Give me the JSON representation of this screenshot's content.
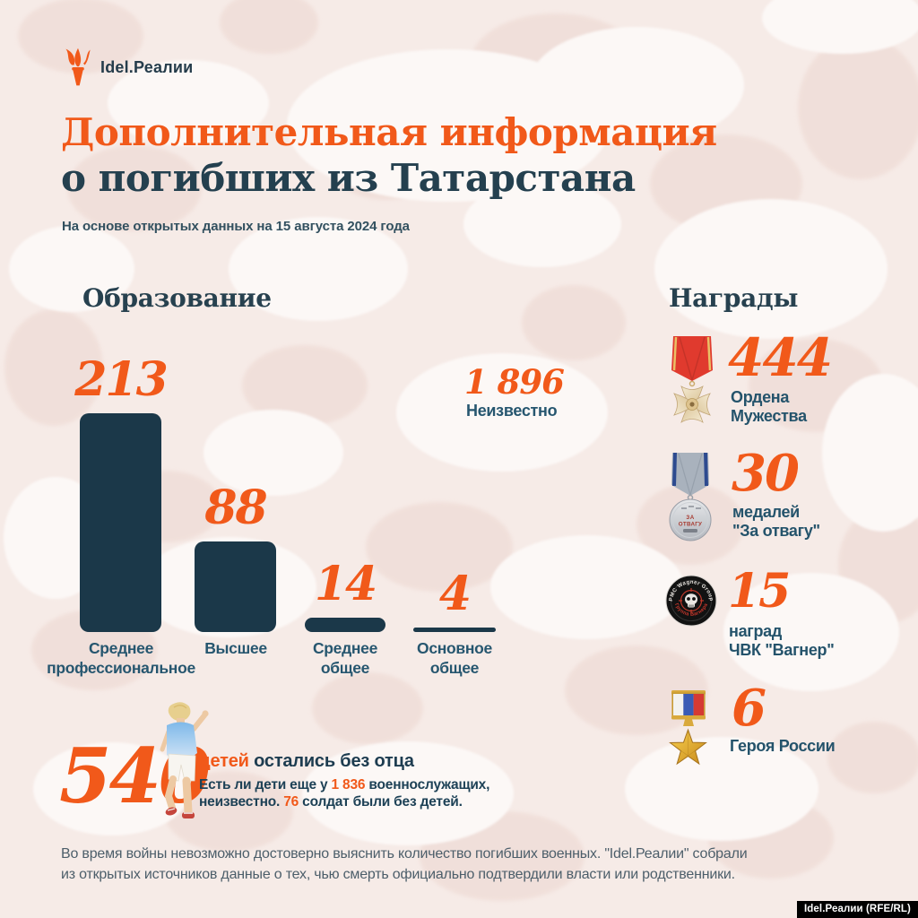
{
  "brand": {
    "logo_text": "Idel.Реалии",
    "badge": "Idel.Реалии (RFE/RL)"
  },
  "header": {
    "title_line1": "Дополнительная информация",
    "title_line2": "о погибших из Татарстана",
    "subtitle": "На основе открытых данных на 15 августа 2024 года"
  },
  "education": {
    "heading": "Образование",
    "bars": [
      {
        "value": "213",
        "label_line1": "Среднее",
        "label_line2": "профессиональное"
      },
      {
        "value": "88",
        "label_line1": "Высшее",
        "label_line2": ""
      },
      {
        "value": "14",
        "label_line1": "Среднее",
        "label_line2": "общее"
      },
      {
        "value": "4",
        "label_line1": "Основное",
        "label_line2": "общее"
      }
    ],
    "unknown": {
      "value": "1 896",
      "label": "Неизвестно"
    }
  },
  "awards": {
    "heading": "Награды",
    "items": [
      {
        "value": "444",
        "label_line1": "Ордена",
        "label_line2": "Мужества",
        "icon": "order-of-courage-medal"
      },
      {
        "value": "30",
        "label_line1": "медалей",
        "label_line2": "\"За отвагу\"",
        "icon": "za-otvagu-medal"
      },
      {
        "value": "15",
        "label_line1": "наград",
        "label_line2": "ЧВК \"Вагнер\"",
        "icon": "wagner-patch"
      },
      {
        "value": "6",
        "label_line1": "Героя России",
        "label_line2": "",
        "icon": "hero-of-russia-star"
      }
    ],
    "medal_inscription_line1": "ЗА",
    "medal_inscription_line2": "ОТВАГУ",
    "wagner_top_text": "PMC Wagner Group",
    "wagner_bottom_text": "Группа Вагнера"
  },
  "children": {
    "value": "540",
    "highlight": "детей",
    "rest": " остались без отца",
    "note_part1": "Есть ли дети еще у ",
    "note_num1": "1 836",
    "note_part2": " военнослужащих,",
    "note_part3": "неизвестно. ",
    "note_num2": "76",
    "note_part4": " солдат были без детей."
  },
  "footer": {
    "line1": "Во время войны невозможно достоверно выяснить количество погибших военных. \"Idel.Реалии\" собрали",
    "line2": "из открытых источников данные о тех, чью смерть официально подтвердили власти или родственники."
  },
  "colors": {
    "accent_orange": "#f1591a",
    "bar_navy": "#1b3849",
    "label_blue": "#26566f",
    "background": "#f6ebe7"
  },
  "chart_data": [
    {
      "type": "bar",
      "title": "Образование",
      "categories": [
        "Среднее профессиональное",
        "Высшее",
        "Среднее общее",
        "Основное общее"
      ],
      "values": [
        213,
        88,
        14,
        4
      ],
      "annotations": [
        {
          "label": "Неизвестно",
          "value": 1896
        }
      ],
      "xlabel": "",
      "ylabel": "",
      "grid": false,
      "legend": "none",
      "bar_color": "#1b3849",
      "value_label_color": "#f1591a"
    },
    {
      "type": "table",
      "title": "Награды",
      "rows": [
        [
          "444",
          "Ордена Мужества"
        ],
        [
          "30",
          "медалей \"За отвагу\""
        ],
        [
          "15",
          "наград ЧВК \"Вагнер\""
        ],
        [
          "6",
          "Героя России"
        ]
      ]
    },
    {
      "type": "table",
      "title": "Дети",
      "rows": [
        [
          "540",
          "детей остались без отца"
        ],
        [
          "1 836",
          "военнослужащих — наличие детей неизвестно"
        ],
        [
          "76",
          "солдат были без детей"
        ]
      ]
    }
  ]
}
